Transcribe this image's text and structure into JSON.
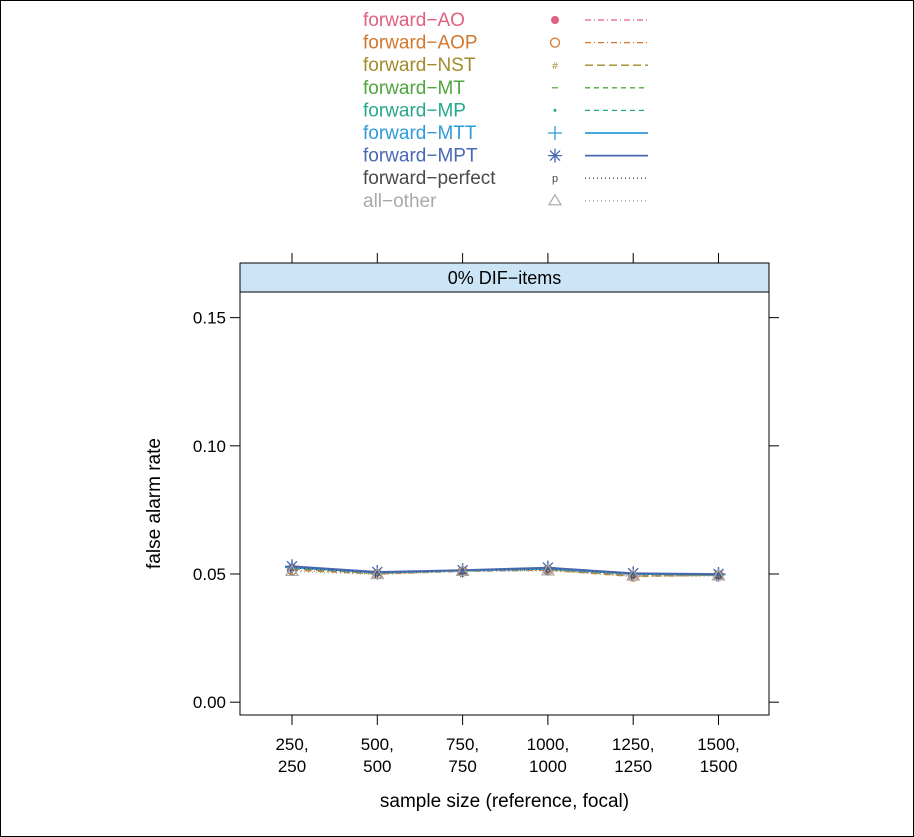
{
  "chart_data": {
    "type": "line",
    "panel_title": "0% DIF−items",
    "xlabel": "sample size (reference, focal)",
    "ylabel": "false alarm rate",
    "ylim": [
      -0.005,
      0.16
    ],
    "yticks": [
      0.0,
      0.05,
      0.1,
      0.15
    ],
    "ytick_labels": [
      "0.00",
      "0.05",
      "0.10",
      "0.15"
    ],
    "categories": [
      [
        "250,",
        "250"
      ],
      [
        "500,",
        "500"
      ],
      [
        "750,",
        "750"
      ],
      [
        "1000,",
        "1000"
      ],
      [
        "1250,",
        "1250"
      ],
      [
        "1500,",
        "1500"
      ]
    ],
    "legend_position": "top",
    "panel_strip_color": "#cce5f6",
    "series": [
      {
        "name": "forward−AO",
        "color": "#e0607e",
        "marker": "filled-circle",
        "dash": "dash-dot",
        "values": [
          0.0525,
          0.0505,
          0.0512,
          0.052,
          0.0495,
          0.0495
        ]
      },
      {
        "name": "forward−AOP",
        "color": "#d2772d",
        "marker": "open-circle",
        "dash": "dash-dot",
        "values": [
          0.0515,
          0.05,
          0.051,
          0.0515,
          0.049,
          0.0495
        ]
      },
      {
        "name": "forward−NST",
        "color": "#a08c2a",
        "marker": "#",
        "dash": "long-dash",
        "values": [
          0.052,
          0.0502,
          0.0512,
          0.0518,
          0.0492,
          0.0495
        ]
      },
      {
        "name": "forward−MT",
        "color": "#4ea63c",
        "marker": "-",
        "dash": "dash",
        "values": [
          0.0525,
          0.0505,
          0.0513,
          0.052,
          0.05,
          0.0497
        ]
      },
      {
        "name": "forward−MP",
        "color": "#26a88c",
        "marker": "dot",
        "dash": "dash",
        "values": [
          0.0525,
          0.0505,
          0.0513,
          0.052,
          0.05,
          0.0497
        ]
      },
      {
        "name": "forward−MTT",
        "color": "#2f9bd6",
        "marker": "plus",
        "dash": "solid",
        "values": [
          0.0525,
          0.0505,
          0.0513,
          0.052,
          0.05,
          0.0497
        ]
      },
      {
        "name": "forward−MPT",
        "color": "#4868b3",
        "marker": "asterisk",
        "dash": "solid",
        "values": [
          0.053,
          0.0508,
          0.0515,
          0.0525,
          0.0503,
          0.05
        ]
      },
      {
        "name": "forward−perfect",
        "color": "#4a4a4a",
        "marker": "p",
        "dash": "dotted",
        "values": [
          0.0525,
          0.0505,
          0.0513,
          0.052,
          0.05,
          0.0497
        ]
      },
      {
        "name": "all−other",
        "color": "#a9a9a9",
        "marker": "open-triangle",
        "dash": "dotted",
        "values": [
          0.051,
          0.0498,
          0.051,
          0.0512,
          0.0492,
          0.0492
        ]
      }
    ]
  }
}
